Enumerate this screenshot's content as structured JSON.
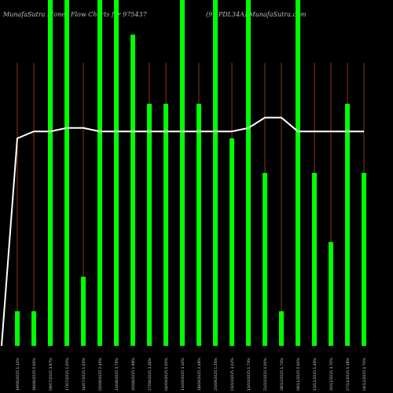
{
  "header": {
    "title_left": "MunafaSutra  Money Flow  Charts for 975437",
    "title_right": "(9%PDL34A) MunafaSutra.com"
  },
  "colors": {
    "background": "#000000",
    "bar": "#00ff00",
    "wick": "#8b3a0e",
    "line": "#ffffff",
    "label": "#cfcfcf"
  },
  "chart_data": {
    "type": "bar",
    "title": "MunafaSutra  Money Flow  Charts for 975437",
    "categories": [
      "19/06/2025 1.32%",
      "26/06/2025 0.00%",
      "09/07/2025 3.97%",
      "17/07/2025 1.00%",
      "24/07/2025 1.05%",
      "05/08/2025 2.45%",
      "13/08/2025 3.75%",
      "20/08/2025 1.98%",
      "27/08/2025 3.26%",
      "04/09/2025 0.00%",
      "11/09/2025 3.10%",
      "18/09/2025 2.49%",
      "25/09/2025 1.35%",
      "03/10/2025 3.02%",
      "13/10/2025 1.73%",
      "21/10/2025 0.00%",
      "28/10/2025 1.74%",
      "06/11/2025 0.00%",
      "13/11/2025 1.49%",
      "20/11/2025 3.70%",
      "27/11/2025 0.18%",
      "04/12/2025 0.70%"
    ],
    "series": [
      {
        "values": [
          10,
          10,
          100,
          100,
          20,
          100,
          100,
          90,
          70,
          70,
          100,
          70,
          100,
          60,
          100,
          50,
          10,
          100,
          50,
          30,
          70,
          50
        ]
      }
    ],
    "line_values": [
      60,
      62,
      62,
      63,
      63,
      62,
      62,
      62,
      62,
      62,
      62,
      62,
      62,
      62,
      63,
      66,
      66,
      62,
      62,
      62,
      62,
      62
    ],
    "line_start": 0,
    "ylim": [
      0,
      100
    ]
  }
}
